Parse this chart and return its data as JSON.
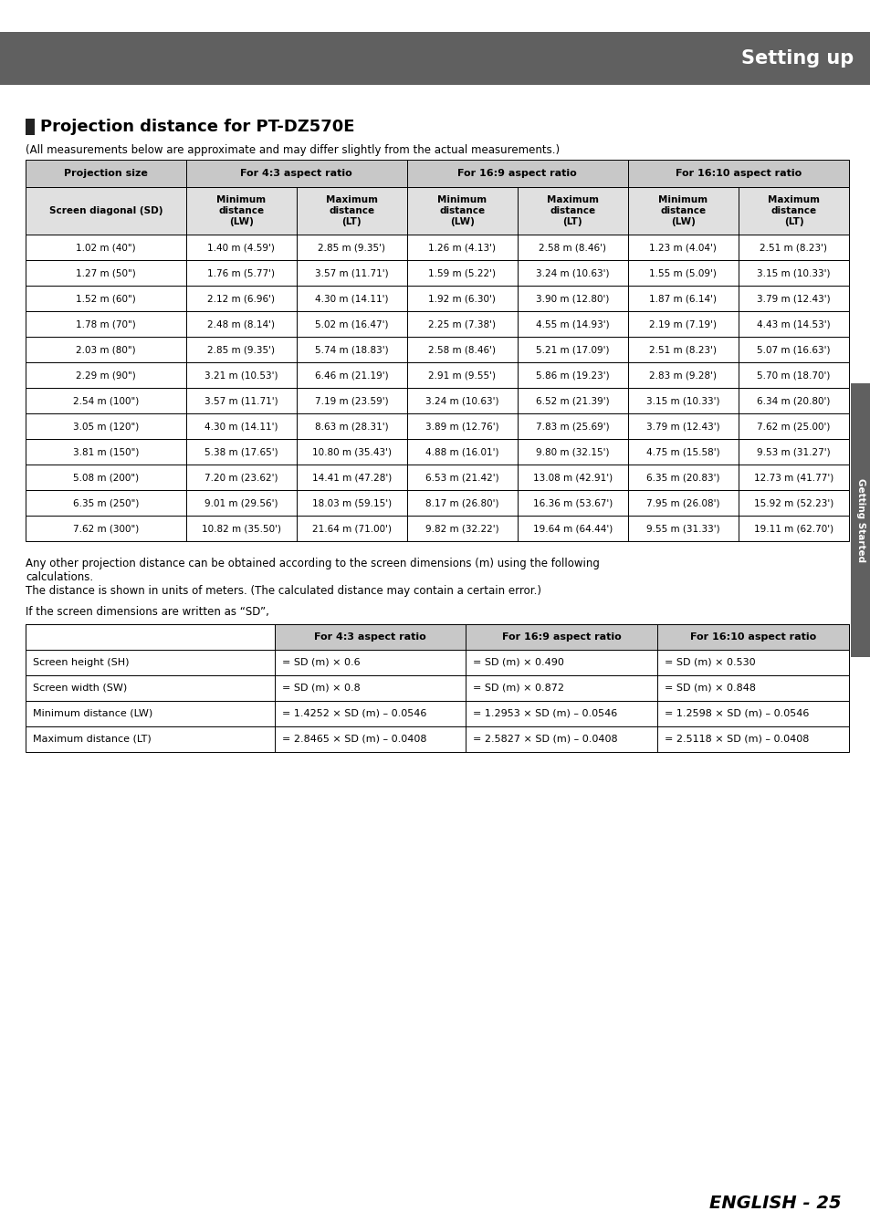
{
  "title": "Setting up",
  "section_title": "Projection distance for PT-DZ570E",
  "subtitle": "(All measurements below are approximate and may differ slightly from the actual measurements.)",
  "header_bg": "#606060",
  "header_text_color": "#ffffff",
  "table_header_bg": "#c8c8c8",
  "table_subheader_bg": "#e0e0e0",
  "sidebar_bg": "#606060",
  "sidebar_text": "Getting Started",
  "main_table_headers": [
    "Projection size",
    "For 4:3 aspect ratio",
    "For 16:9 aspect ratio",
    "For 16:10 aspect ratio"
  ],
  "main_table_subheaders": [
    "Screen diagonal (SD)",
    "Minimum\ndistance\n(LW)",
    "Maximum\ndistance\n(LT)",
    "Minimum\ndistance\n(LW)",
    "Maximum\ndistance\n(LT)",
    "Minimum\ndistance\n(LW)",
    "Maximum\ndistance\n(LT)"
  ],
  "main_table_data": [
    [
      "1.02 m (40\")",
      "1.40 m (4.59')",
      "2.85 m (9.35')",
      "1.26 m (4.13')",
      "2.58 m (8.46')",
      "1.23 m (4.04')",
      "2.51 m (8.23')"
    ],
    [
      "1.27 m (50\")",
      "1.76 m (5.77')",
      "3.57 m (11.71')",
      "1.59 m (5.22')",
      "3.24 m (10.63')",
      "1.55 m (5.09')",
      "3.15 m (10.33')"
    ],
    [
      "1.52 m (60\")",
      "2.12 m (6.96')",
      "4.30 m (14.11')",
      "1.92 m (6.30')",
      "3.90 m (12.80')",
      "1.87 m (6.14')",
      "3.79 m (12.43')"
    ],
    [
      "1.78 m (70\")",
      "2.48 m (8.14')",
      "5.02 m (16.47')",
      "2.25 m (7.38')",
      "4.55 m (14.93')",
      "2.19 m (7.19')",
      "4.43 m (14.53')"
    ],
    [
      "2.03 m (80\")",
      "2.85 m (9.35')",
      "5.74 m (18.83')",
      "2.58 m (8.46')",
      "5.21 m (17.09')",
      "2.51 m (8.23')",
      "5.07 m (16.63')"
    ],
    [
      "2.29 m (90\")",
      "3.21 m (10.53')",
      "6.46 m (21.19')",
      "2.91 m (9.55')",
      "5.86 m (19.23')",
      "2.83 m (9.28')",
      "5.70 m (18.70')"
    ],
    [
      "2.54 m (100\")",
      "3.57 m (11.71')",
      "7.19 m (23.59')",
      "3.24 m (10.63')",
      "6.52 m (21.39')",
      "3.15 m (10.33')",
      "6.34 m (20.80')"
    ],
    [
      "3.05 m (120\")",
      "4.30 m (14.11')",
      "8.63 m (28.31')",
      "3.89 m (12.76')",
      "7.83 m (25.69')",
      "3.79 m (12.43')",
      "7.62 m (25.00')"
    ],
    [
      "3.81 m (150\")",
      "5.38 m (17.65')",
      "10.80 m (35.43')",
      "4.88 m (16.01')",
      "9.80 m (32.15')",
      "4.75 m (15.58')",
      "9.53 m (31.27')"
    ],
    [
      "5.08 m (200\")",
      "7.20 m (23.62')",
      "14.41 m (47.28')",
      "6.53 m (21.42')",
      "13.08 m (42.91')",
      "6.35 m (20.83')",
      "12.73 m (41.77')"
    ],
    [
      "6.35 m (250\")",
      "9.01 m (29.56')",
      "18.03 m (59.15')",
      "8.17 m (26.80')",
      "16.36 m (53.67')",
      "7.95 m (26.08')",
      "15.92 m (52.23')"
    ],
    [
      "7.62 m (300\")",
      "10.82 m (35.50')",
      "21.64 m (71.00')",
      "9.82 m (32.22')",
      "19.64 m (64.44')",
      "9.55 m (31.33')",
      "19.11 m (62.70')"
    ]
  ],
  "paragraph1": "Any other projection distance can be obtained according to the screen dimensions (m) using the following\ncalculations.\nThe distance is shown in units of meters. (The calculated distance may contain a certain error.)",
  "paragraph2": "If the screen dimensions are written as “SD”,",
  "formula_table_headers": [
    "",
    "For 4:3 aspect ratio",
    "For 16:9 aspect ratio",
    "For 16:10 aspect ratio"
  ],
  "formula_table_data": [
    [
      "Screen height (SH)",
      "= SD (m) × 0.6",
      "= SD (m) × 0.490",
      "= SD (m) × 0.530"
    ],
    [
      "Screen width (SW)",
      "= SD (m) × 0.8",
      "= SD (m) × 0.872",
      "= SD (m) × 0.848"
    ],
    [
      "Minimum distance (LW)",
      "= 1.4252 × SD (m) – 0.0546",
      "= 1.2953 × SD (m) – 0.0546",
      "= 1.2598 × SD (m) – 0.0546"
    ],
    [
      "Maximum distance (LT)",
      "= 2.8465 × SD (m) – 0.0408",
      "= 2.5827 × SD (m) – 0.0408",
      "= 2.5118 × SD (m) – 0.0408"
    ]
  ],
  "page_number": "ENGLISH - 25",
  "background_color": "#ffffff"
}
